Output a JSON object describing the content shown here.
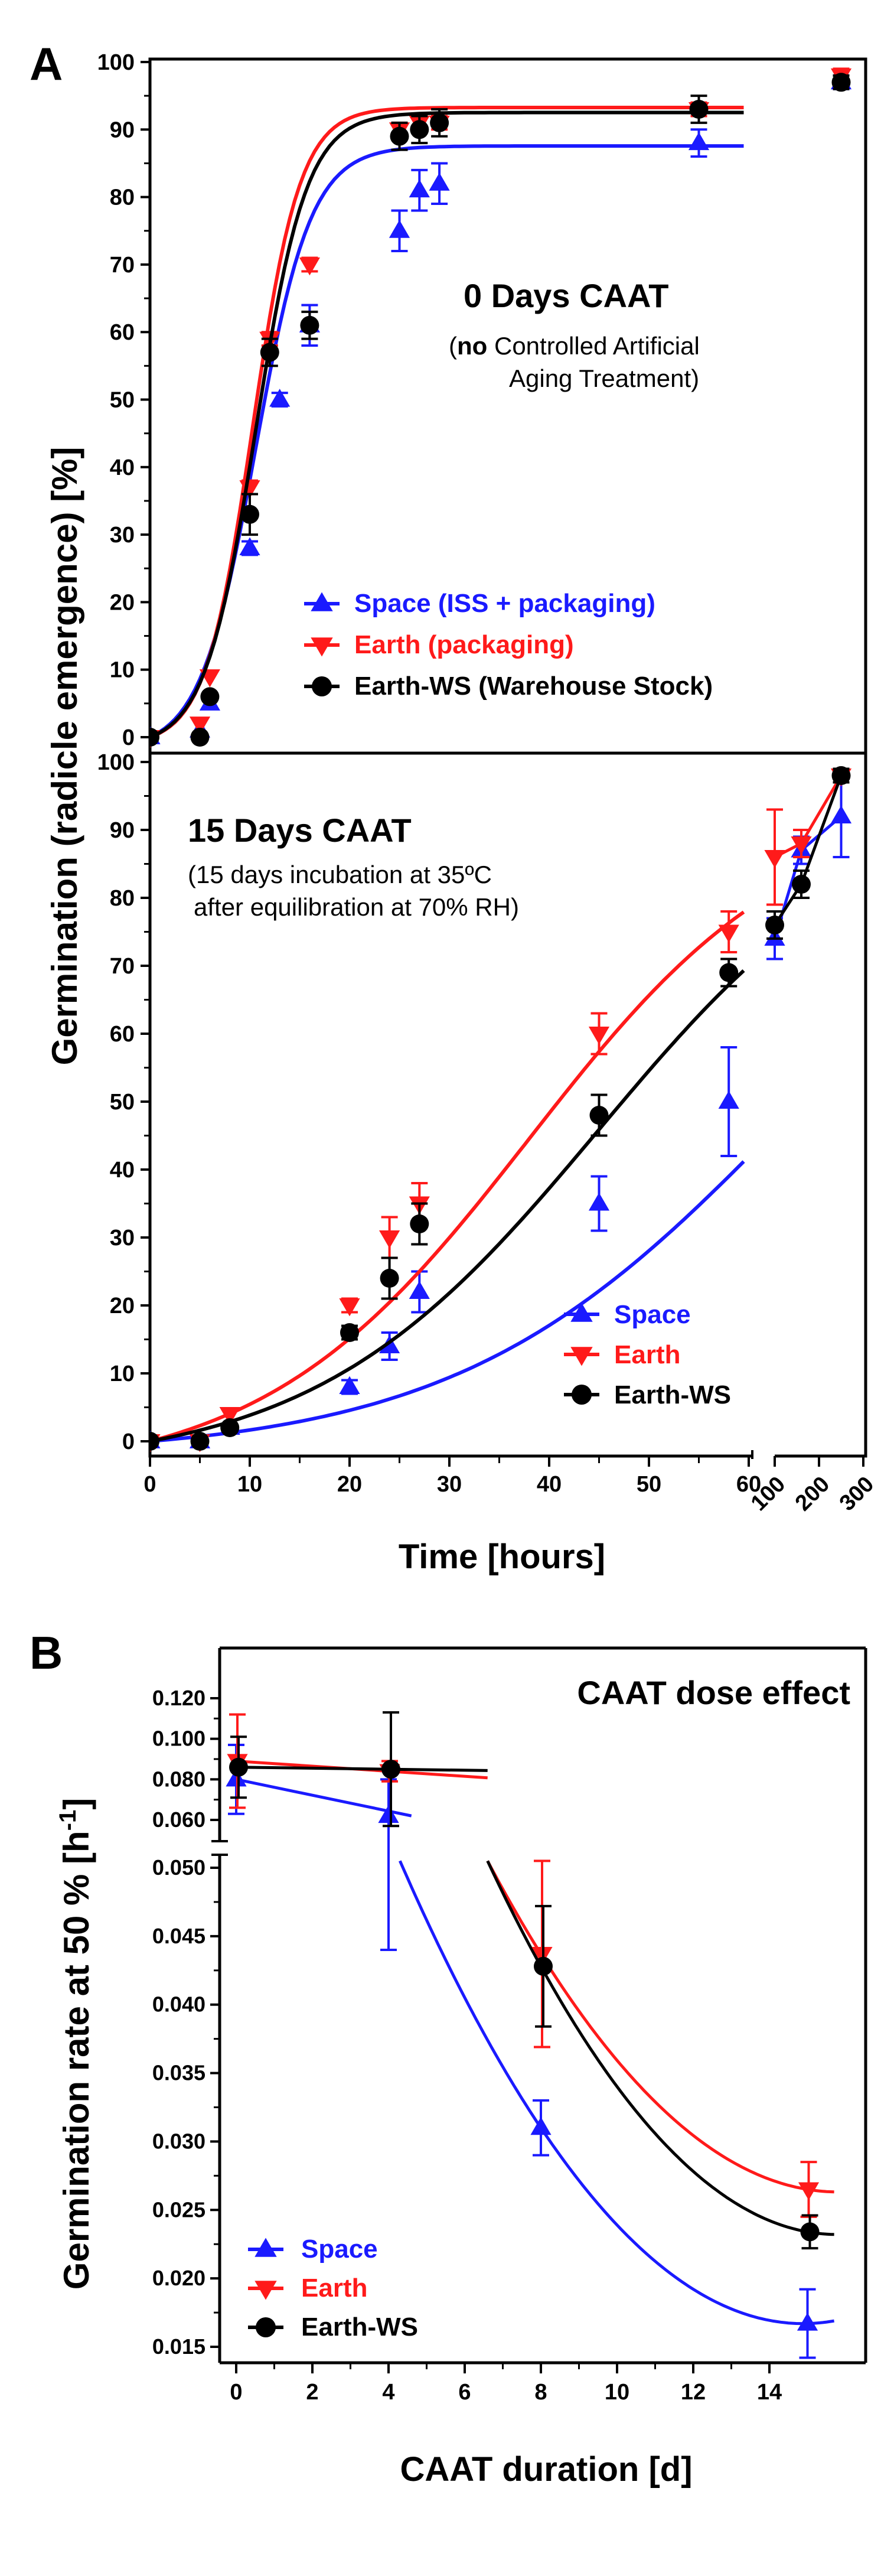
{
  "panel_a": {
    "letter": "A",
    "y_label": "Germination (radicle emergence)   [%]",
    "x_label": "Time  [hours]",
    "top": {
      "title": "0 Days CAAT",
      "note_prefix": "(",
      "note_bold": "no",
      "note_rest": " Controlled Artificial",
      "note_line2": "Aging Treatment)",
      "legend": [
        "Space (ISS + packaging)",
        "Earth (packaging)",
        "Earth-WS (Warehouse Stock)"
      ]
    },
    "bottom": {
      "title": "15 Days CAAT",
      "note_line1": "(15 days incubation at 35ºC",
      "note_line2": "after equilibration at 70% RH)",
      "legend": [
        "Space",
        "Earth",
        "Earth-WS"
      ]
    }
  },
  "panel_b": {
    "letter": "B",
    "title": "CAAT dose effect",
    "y_label": "Germination rate at 50 %   [h",
    "y_label_sup": "-1",
    "y_label_end": "]",
    "x_label": "CAAT duration  [d]",
    "legend": [
      "Space",
      "Earth",
      "Earth-WS"
    ]
  },
  "colors": {
    "space": "#1a1aff",
    "earth": "#ff1a1a",
    "earthws": "#000000"
  },
  "chart_data": [
    {
      "type": "scatter",
      "title": "0 Days CAAT",
      "xlabel": "Time  [hours]",
      "ylabel": "Germination (radicle emergence)   [%]",
      "xlim": [
        0,
        300
      ],
      "x_axis_break": [
        60,
        100
      ],
      "ylim": [
        0,
        100
      ],
      "x_ticks": [
        "0",
        "10",
        "20",
        "30",
        "40",
        "50",
        "60",
        "100",
        "200",
        "300"
      ],
      "y_ticks": [
        "0",
        "10",
        "20",
        "30",
        "40",
        "50",
        "60",
        "70",
        "80",
        "90",
        "100"
      ],
      "series": [
        {
          "name": "Space (ISS + packaging)",
          "marker": "triangle-up",
          "color": "#1a1aff",
          "x": [
            0,
            5,
            6,
            10,
            13,
            16,
            25,
            27,
            29,
            55,
            250
          ],
          "y": [
            0,
            1,
            5,
            28,
            50,
            61,
            75,
            81,
            82,
            88,
            97
          ],
          "err": [
            0,
            0,
            0,
            1,
            1,
            3,
            3,
            3,
            3,
            2,
            1
          ],
          "fit": {
            "plateau": 89.5,
            "t50": 10.6,
            "k": 0.36
          }
        },
        {
          "name": "Earth (packaging)",
          "marker": "triangle-down",
          "color": "#ff1a1a",
          "x": [
            0,
            5,
            6,
            10,
            12,
            16,
            25,
            27,
            29,
            55,
            250
          ],
          "y": [
            0,
            2,
            9,
            37,
            59,
            70,
            90,
            91,
            91,
            93,
            98
          ],
          "err": [
            0,
            0,
            0,
            1,
            1,
            1,
            1,
            1,
            1,
            1,
            1
          ],
          "fit": {
            "plateau": 94.5,
            "t50": 10.3,
            "k": 0.42
          }
        },
        {
          "name": "Earth-WS (Warehouse Stock)",
          "marker": "circle",
          "color": "#000000",
          "x": [
            0,
            5,
            6,
            10,
            12,
            16,
            25,
            27,
            29,
            55,
            250
          ],
          "y": [
            0,
            0,
            6,
            33,
            57,
            61,
            89,
            90,
            91,
            93,
            97
          ],
          "err": [
            0,
            0,
            0,
            3,
            2,
            2,
            2,
            2,
            2,
            2,
            1
          ],
          "fit": {
            "plateau": 94,
            "t50": 10.6,
            "k": 0.39
          }
        }
      ]
    },
    {
      "type": "scatter",
      "title": "15 Days CAAT",
      "xlabel": "Time  [hours]",
      "ylabel": "Germination (radicle emergence)   [%]",
      "xlim": [
        0,
        300
      ],
      "x_axis_break": [
        60,
        100
      ],
      "ylim": [
        0,
        100
      ],
      "x_ticks": [
        "0",
        "10",
        "20",
        "30",
        "40",
        "50",
        "60",
        "100",
        "200",
        "300"
      ],
      "y_ticks": [
        "0",
        "10",
        "20",
        "30",
        "40",
        "50",
        "60",
        "70",
        "80",
        "90",
        "100"
      ],
      "series": [
        {
          "name": "Space",
          "marker": "triangle-up",
          "color": "#1a1aff",
          "x": [
            0,
            5,
            8,
            20,
            24,
            27,
            45,
            58,
            100,
            160,
            250
          ],
          "y": [
            0,
            0,
            2,
            8,
            14,
            22,
            35,
            50,
            74,
            87,
            92
          ],
          "err": [
            0,
            0,
            0,
            1,
            2,
            3,
            4,
            8,
            3,
            2,
            6
          ],
          "fit": {
            "plateau": 100,
            "t50": 64,
            "k": 0.06
          }
        },
        {
          "name": "Earth",
          "marker": "triangle-down",
          "color": "#ff1a1a",
          "x": [
            0,
            5,
            8,
            20,
            24,
            27,
            45,
            58,
            100,
            160,
            250
          ],
          "y": [
            0,
            0,
            4,
            20,
            30,
            35,
            60,
            75,
            86,
            88,
            98
          ],
          "err": [
            0,
            0,
            0,
            1,
            3,
            3,
            3,
            3,
            7,
            2,
            1
          ],
          "fit": {
            "plateau": 100,
            "t50": 38,
            "k": 0.075
          }
        },
        {
          "name": "Earth-WS",
          "marker": "circle",
          "color": "#000000",
          "x": [
            0,
            5,
            8,
            20,
            24,
            27,
            45,
            58,
            100,
            160,
            250
          ],
          "y": [
            0,
            0,
            2,
            16,
            24,
            32,
            48,
            69,
            76,
            82,
            98
          ],
          "err": [
            0,
            0,
            0,
            1,
            3,
            3,
            3,
            2,
            2,
            2,
            1
          ],
          "fit": {
            "plateau": 100,
            "t50": 45,
            "k": 0.07
          }
        }
      ]
    },
    {
      "type": "scatter",
      "title": "CAAT dose effect",
      "xlabel": "CAAT duration  [d]",
      "ylabel": "Germination rate at 50 %   [h-1]",
      "xlim": [
        -1,
        15.7
      ],
      "y_axis_break": [
        0.0505,
        0.06
      ],
      "ylim": [
        0.015,
        0.12
      ],
      "x_ticks": [
        "0",
        "2",
        "4",
        "6",
        "8",
        "10",
        "12",
        "14"
      ],
      "y_ticks": [
        "0.015",
        "0.020",
        "0.025",
        "0.030",
        "0.035",
        "0.040",
        "0.045",
        "0.050",
        "0.060",
        "0.080",
        "0.100",
        "0.120"
      ],
      "series": [
        {
          "name": "Space",
          "marker": "triangle-up",
          "color": "#1a1aff",
          "x": [
            0,
            4,
            8,
            15
          ],
          "y": [
            0.08,
            0.062,
            0.031,
            0.0167
          ],
          "err": [
            0.017,
            0.018,
            0.002,
            0.0025
          ]
        },
        {
          "name": "Earth",
          "marker": "triangle-down",
          "color": "#ff1a1a",
          "x": [
            0,
            4,
            8,
            15
          ],
          "y": [
            0.089,
            0.084,
            0.0437,
            0.0265
          ],
          "err": [
            0.023,
            0.005,
            0.0068,
            0.002
          ]
        },
        {
          "name": "Earth-WS",
          "marker": "circle",
          "color": "#000000",
          "x": [
            0,
            4,
            8,
            15
          ],
          "y": [
            0.086,
            0.085,
            0.0428,
            0.0234
          ],
          "err": [
            0.015,
            0.028,
            0.0044,
            0.0012
          ]
        }
      ]
    }
  ]
}
